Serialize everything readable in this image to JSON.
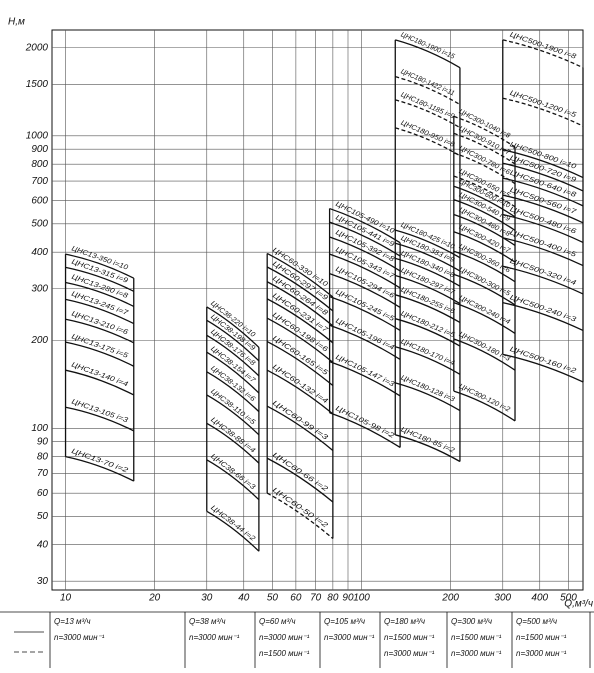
{
  "chart_data": {
    "type": "pump-fields",
    "y_label": "H,м",
    "x_label": "Q,м³/ч",
    "log_x": true,
    "log_y": true,
    "grid": true,
    "xlim": [
      9,
      560
    ],
    "ylim": [
      28,
      2300
    ],
    "xticks": [
      10,
      20,
      30,
      40,
      50,
      60,
      70,
      80,
      90,
      100,
      200,
      300,
      400,
      500
    ],
    "yticks": [
      30,
      40,
      50,
      60,
      70,
      80,
      90,
      100,
      200,
      300,
      400,
      500,
      600,
      700,
      800,
      900,
      1000,
      1500,
      2000
    ],
    "fields": [
      {
        "q_range": [
          10,
          17
        ],
        "curves": [
          {
            "label": "ЦНС13-70 i=2",
            "values": [
              80,
              66
            ],
            "dashed": false
          },
          {
            "label": "ЦНС13-105 i=3",
            "values": [
              118,
              98
            ],
            "dashed": false
          },
          {
            "label": "ЦНС13-140 i=4",
            "values": [
              158,
              130
            ],
            "dashed": false
          },
          {
            "label": "ЦНС13-175 i=5",
            "values": [
              197,
              163
            ],
            "dashed": false
          },
          {
            "label": "ЦНС13-210 i=6",
            "values": [
              236,
              196
            ],
            "dashed": false
          },
          {
            "label": "ЦНС13-245 i=7",
            "values": [
              276,
              228
            ],
            "dashed": false
          },
          {
            "label": "ЦНС13-280 i=8",
            "values": [
              315,
              261
            ],
            "dashed": false
          },
          {
            "label": "ЦНС13-315 i=9",
            "values": [
              355,
              294
            ],
            "dashed": false
          },
          {
            "label": "ЦНС13-350 i=10",
            "values": [
              394,
              326
            ],
            "dashed": false
          }
        ]
      },
      {
        "q_range": [
          30,
          45
        ],
        "curves": [
          {
            "label": "ЦНС38-44 i=2",
            "values": [
              52,
              38
            ],
            "dashed": false
          },
          {
            "label": "ЦНС38-66 i=3",
            "values": [
              78,
              57
            ],
            "dashed": false
          },
          {
            "label": "ЦНС38-88 i=4",
            "values": [
              104,
              76
            ],
            "dashed": false
          },
          {
            "label": "ЦНС38-110 i=5",
            "values": [
              130,
              95
            ],
            "dashed": false
          },
          {
            "label": "ЦНС38-132 i=6",
            "values": [
              156,
              114
            ],
            "dashed": false
          },
          {
            "label": "ЦНС38-154 i=7",
            "values": [
              182,
              132
            ],
            "dashed": false
          },
          {
            "label": "ЦНС38-176 i=8",
            "values": [
              208,
              151
            ],
            "dashed": false
          },
          {
            "label": "ЦНС38-198 i=9",
            "values": [
              234,
              170
            ],
            "dashed": false
          },
          {
            "label": "ЦНС38-220 i=10",
            "values": [
              260,
              189
            ],
            "dashed": false
          }
        ]
      },
      {
        "q_range": [
          48,
          80
        ],
        "curves": [
          {
            "label": "ЦНС60-50 i=2",
            "values": [
              60,
              42
            ],
            "dashed": true
          },
          {
            "label": "ЦНС60-66 i=2",
            "values": [
              79,
              56
            ],
            "dashed": false
          },
          {
            "label": "ЦНС60-99 i=3",
            "values": [
              119,
              84
            ],
            "dashed": false
          },
          {
            "label": "ЦНС60-132 i=4",
            "values": [
              158,
              112
            ],
            "dashed": false
          },
          {
            "label": "ЦНС60-165 i=5",
            "values": [
              198,
              140
            ],
            "dashed": false
          },
          {
            "label": "ЦНС60-198 i=6",
            "values": [
              238,
              168
            ],
            "dashed": false
          },
          {
            "label": "ЦНС60-231 i=7",
            "values": [
              277,
              196
            ],
            "dashed": false
          },
          {
            "label": "ЦНС60-264 i=8",
            "values": [
              317,
              224
            ],
            "dashed": false
          },
          {
            "label": "ЦНС60-297 i=9",
            "values": [
              356,
              252
            ],
            "dashed": false
          },
          {
            "label": "ЦНС60-330 i=10",
            "values": [
              396,
              281
            ],
            "dashed": false
          }
        ]
      },
      {
        "q_range": [
          78,
          135
        ],
        "curves": [
          {
            "label": "ЦНС105-98 i=2",
            "values": [
              113,
              86
            ],
            "dashed": false
          },
          {
            "label": "ЦНС105-147 i=3",
            "values": [
              169,
              129
            ],
            "dashed": false
          },
          {
            "label": "ЦНС105-196 i=4",
            "values": [
              225,
              172
            ],
            "dashed": false
          },
          {
            "label": "ЦНС105-245 i=5",
            "values": [
              282,
              216
            ],
            "dashed": false
          },
          {
            "label": "ЦНС105-294 i=6",
            "values": [
              338,
              259
            ],
            "dashed": false
          },
          {
            "label": "ЦНС105-343 i=7",
            "values": [
              394,
              302
            ],
            "dashed": false
          },
          {
            "label": "ЦНС105-392 i=8",
            "values": [
              451,
              345
            ],
            "dashed": false
          },
          {
            "label": "ЦНС105-441 i=9",
            "values": [
              507,
              388
            ],
            "dashed": false
          },
          {
            "label": "ЦНС105-490 i=10",
            "values": [
              564,
              431
            ],
            "dashed": false
          }
        ]
      },
      {
        "q_range": [
          130,
          215
        ],
        "curves": [
          {
            "label": "ЦНС180-85 i=2",
            "values": [
              95,
              77
            ],
            "dashed": false
          },
          {
            "label": "ЦНС180-128 i=3",
            "values": [
              143,
              115
            ],
            "dashed": false
          },
          {
            "label": "ЦНС180-170 i=4",
            "values": [
              190,
              153
            ],
            "dashed": false
          },
          {
            "label": "ЦНС180-212 i=5",
            "values": [
              237,
              191
            ],
            "dashed": false
          },
          {
            "label": "ЦНС180-255 i=6",
            "values": [
              286,
              230
            ],
            "dashed": false
          },
          {
            "label": "ЦНС180-297 i=7",
            "values": [
              333,
              267
            ],
            "dashed": false
          },
          {
            "label": "ЦНС180-340 i=8",
            "values": [
              381,
              306
            ],
            "dashed": false
          },
          {
            "label": "ЦНС180-383 i=9",
            "values": [
              429,
              345
            ],
            "dashed": false
          },
          {
            "label": "ЦНС180-425 i=10",
            "values": [
              476,
              383
            ],
            "dashed": false
          },
          {
            "label": "ЦНС180-950 i=8",
            "values": [
              1064,
              855
            ],
            "dashed": true
          },
          {
            "label": "ЦНС180-1185 i=9",
            "values": [
              1327,
              1067
            ],
            "dashed": true
          },
          {
            "label": "ЦНС180-1422 i=11",
            "values": [
              1593,
              1280
            ],
            "dashed": true
          },
          {
            "label": "ЦНС180-1900 i=15",
            "values": [
              2128,
              1710
            ],
            "dashed": false
          }
        ]
      },
      {
        "q_range": [
          205,
          330
        ],
        "curves": [
          {
            "label": "ЦНС300-120 i=2",
            "values": [
              134,
              106
            ],
            "dashed": false
          },
          {
            "label": "ЦНС300-180 i=3",
            "values": [
              202,
              158
            ],
            "dashed": false
          },
          {
            "label": "ЦНС300-240 i=4",
            "values": [
              269,
              211
            ],
            "dashed": false
          },
          {
            "label": "ЦНС300-300 i=5",
            "values": [
              336,
              264
            ],
            "dashed": false
          },
          {
            "label": "ЦНС300-360 i=6",
            "values": [
              403,
              317
            ],
            "dashed": false
          },
          {
            "label": "ЦНС300-420 i=7",
            "values": [
              470,
              370
            ],
            "dashed": false
          },
          {
            "label": "ЦНС300-480 i=8",
            "values": [
              538,
              422
            ],
            "dashed": false
          },
          {
            "label": "ЦНС300-540 i=9",
            "values": [
              605,
              475
            ],
            "dashed": false
          },
          {
            "label": "ЦНС300-600 i=10",
            "values": [
              672,
              528
            ],
            "dashed": false
          },
          {
            "label": "ЦНС300-650 i=5",
            "values": [
              728,
              572
            ],
            "dashed": true
          },
          {
            "label": "ЦНС300-780 i=6",
            "values": [
              874,
              686
            ],
            "dashed": true
          },
          {
            "label": "ЦНС300-910 i=7",
            "values": [
              1019,
              801
            ],
            "dashed": true
          },
          {
            "label": "ЦНС300-1040 i=8",
            "values": [
              1165,
              915
            ],
            "dashed": true
          }
        ]
      },
      {
        "q_range": [
          300,
          560
        ],
        "curves": [
          {
            "label": "ЦНС500-160 i=2",
            "values": [
              179,
              144
            ],
            "dashed": false
          },
          {
            "label": "ЦНС500-240 i=3",
            "values": [
              269,
              216
            ],
            "dashed": false
          },
          {
            "label": "ЦНС500-320 i=4",
            "values": [
              358,
              288
            ],
            "dashed": false
          },
          {
            "label": "ЦНС500-400 i=5",
            "values": [
              448,
              360
            ],
            "dashed": false
          },
          {
            "label": "ЦНС500-480 i=6",
            "values": [
              538,
              432
            ],
            "dashed": false
          },
          {
            "label": "ЦНС500-560 i=7",
            "values": [
              627,
              504
            ],
            "dashed": false
          },
          {
            "label": "ЦНС500-640 i=8",
            "values": [
              717,
              576
            ],
            "dashed": false
          },
          {
            "label": "ЦНС500-720 i=9",
            "values": [
              806,
              648
            ],
            "dashed": false
          },
          {
            "label": "ЦНС500-800 i=10",
            "values": [
              896,
              720
            ],
            "dashed": false
          },
          {
            "label": "ЦНС500-1200 i=5",
            "values": [
              1344,
              1080
            ],
            "dashed": true
          },
          {
            "label": "ЦНС500-1900 i=8",
            "values": [
              2128,
              1710
            ],
            "dashed": true
          }
        ]
      }
    ]
  },
  "legend_table": {
    "columns": [
      {
        "flow": "Q=13 м³/ч",
        "speeds": [
          "n=3000 мин⁻¹"
        ]
      },
      {
        "flow": "Q=38 м³/ч",
        "speeds": [
          "n=3000 мин⁻¹"
        ]
      },
      {
        "flow": "Q=60 м³/ч",
        "speeds": [
          "n=3000 мин⁻¹",
          "n=1500 мин⁻¹"
        ]
      },
      {
        "flow": "Q=105 м³/ч",
        "speeds": [
          "n=3000 мин⁻¹"
        ]
      },
      {
        "flow": "Q=180 м³/ч",
        "speeds": [
          "n=1500 мин⁻¹",
          "n=3000 мин⁻¹"
        ]
      },
      {
        "flow": "Q=300 м³/ч",
        "speeds": [
          "n=1500 мин⁻¹",
          "n=3000 мин⁻¹"
        ]
      },
      {
        "flow": "Q=500 м³/ч",
        "speeds": [
          "n=1500 мин⁻¹",
          "n=3000 мин⁻¹"
        ]
      }
    ]
  }
}
